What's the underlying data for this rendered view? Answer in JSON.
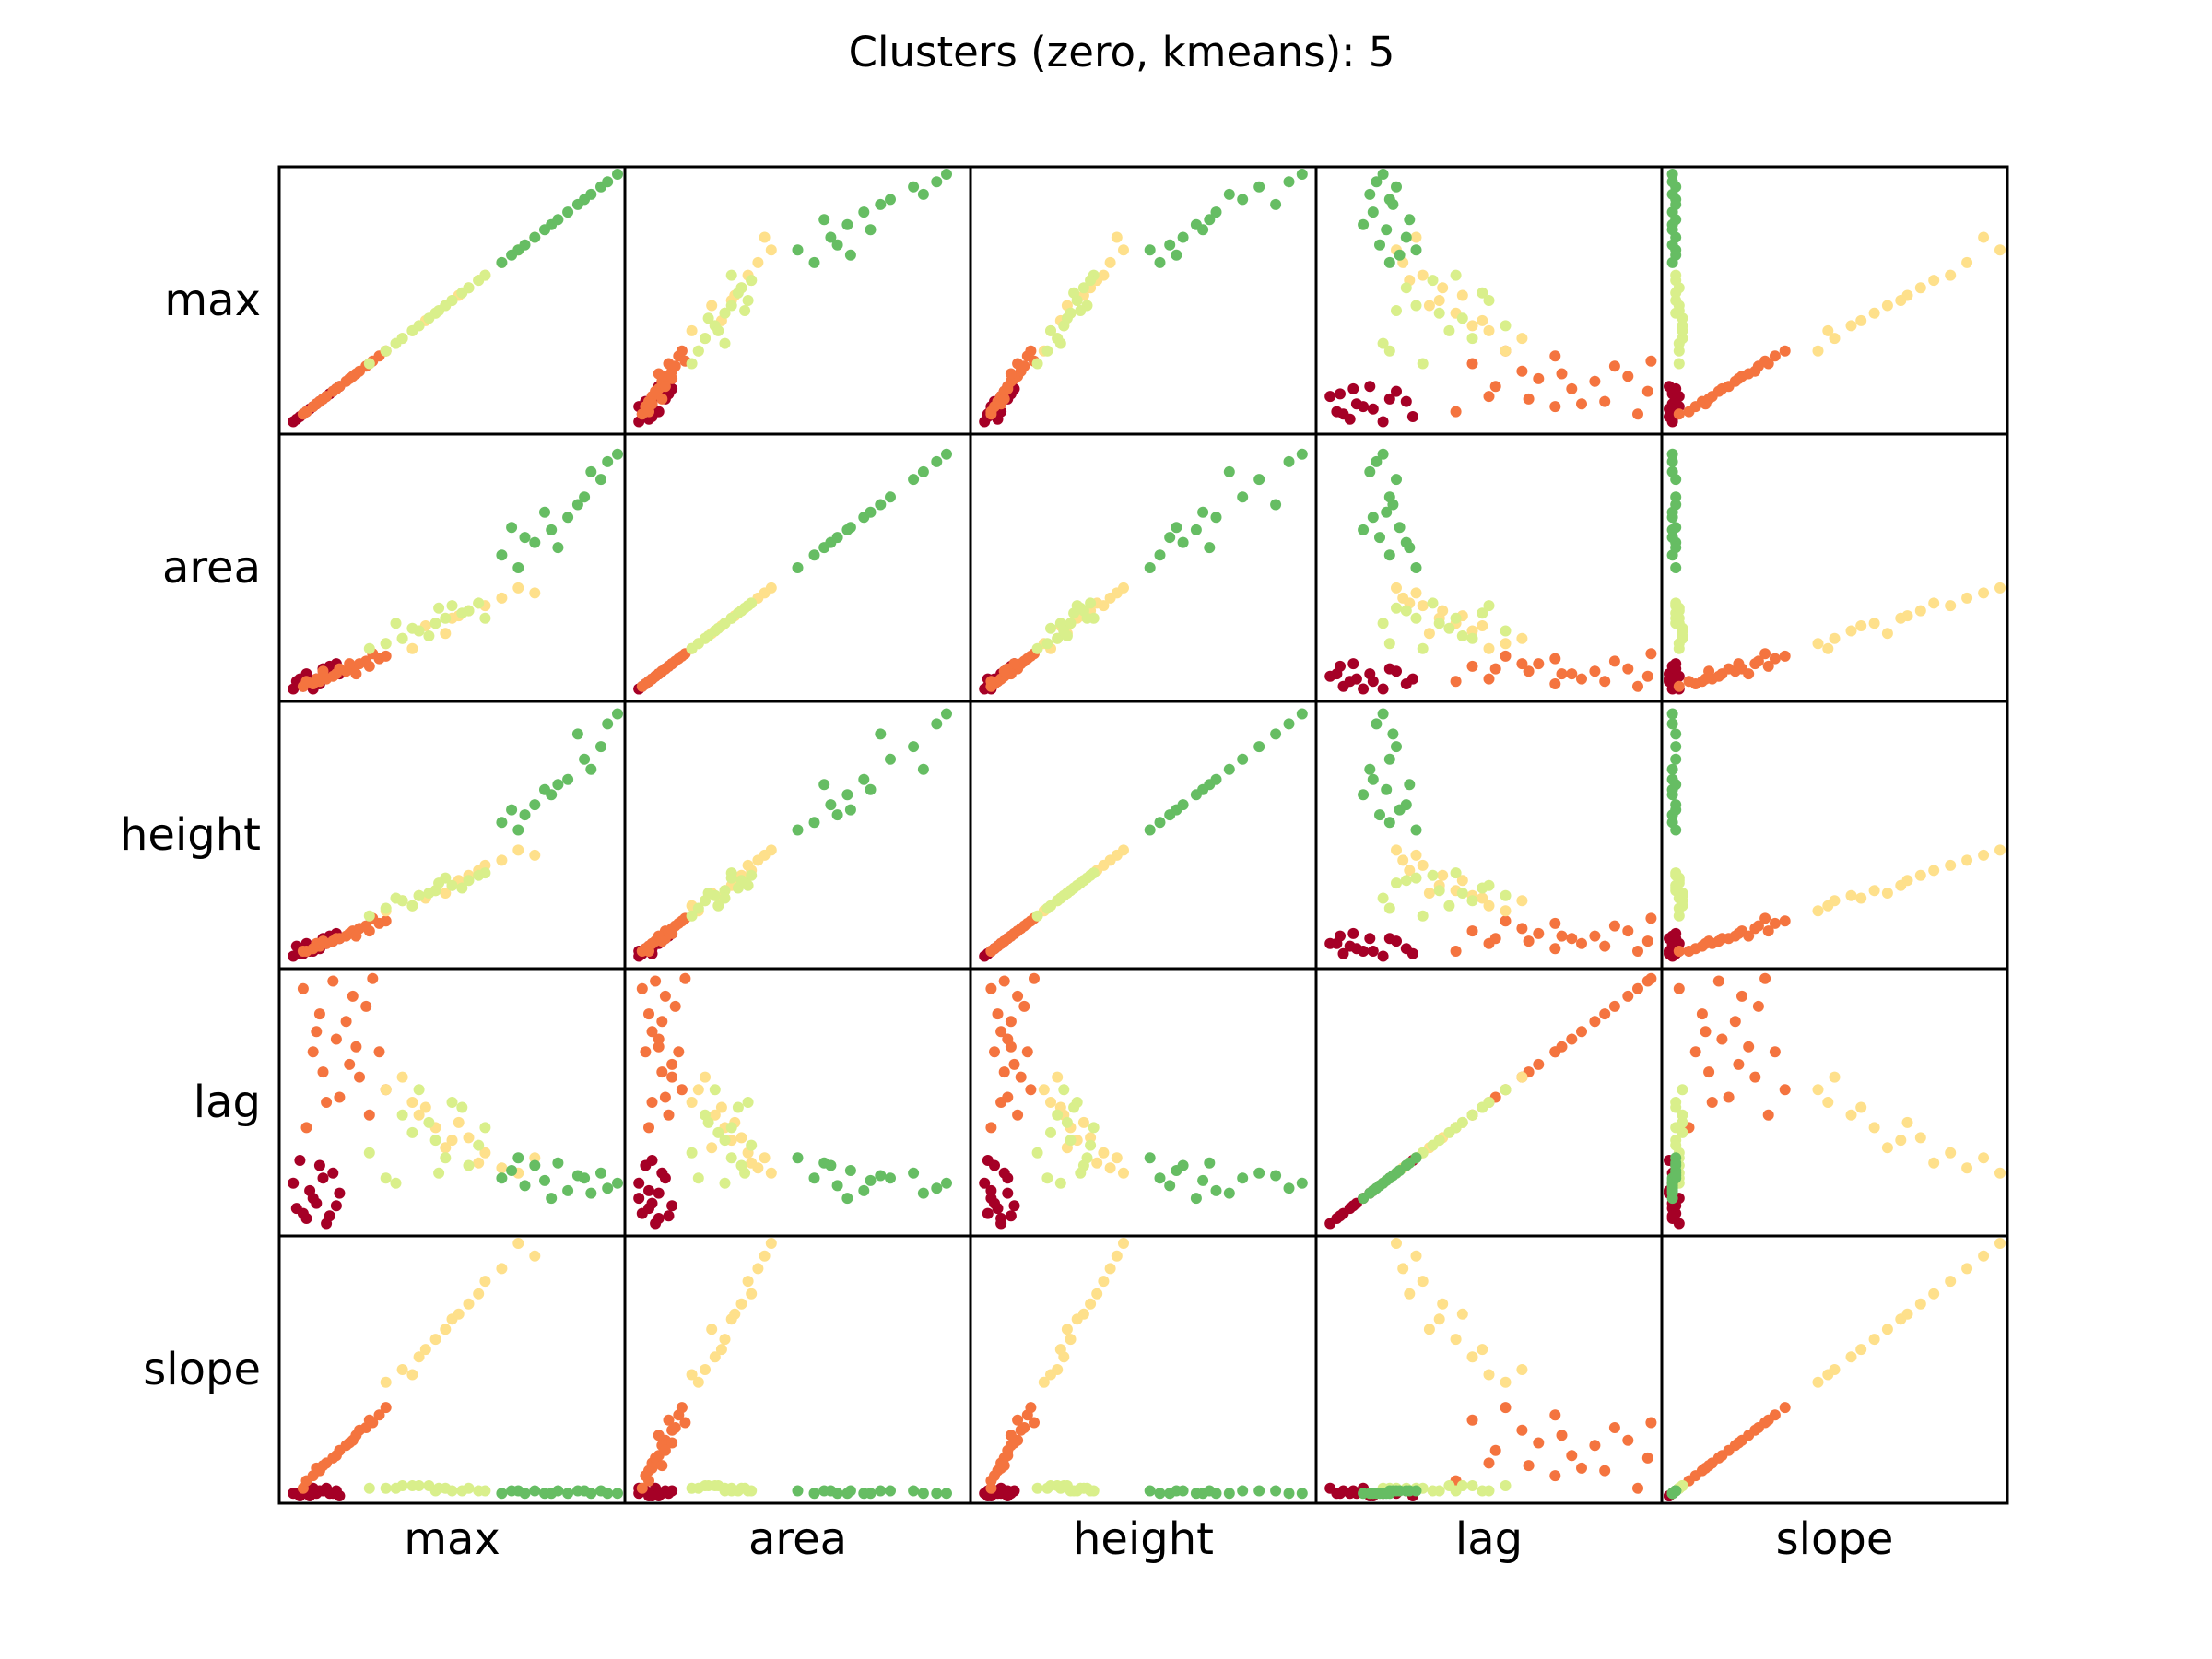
{
  "chart_data": {
    "type": "scatter",
    "title": "Clusters (zero, kmeans): 5",
    "variables": [
      "max",
      "area",
      "height",
      "lag",
      "slope"
    ],
    "row_labels": [
      "max",
      "area",
      "height",
      "lag",
      "slope"
    ],
    "column_labels": [
      "max",
      "area",
      "height",
      "lag",
      "slope"
    ],
    "layout": "scatter-matrix",
    "axes_ticks": "none",
    "grid": false,
    "n_clusters": 5,
    "cluster_colors": [
      "#a50026",
      "#f4743f",
      "#fee08b",
      "#d9ef8b",
      "#66bd63"
    ],
    "clusters": [
      {
        "id": 0,
        "color": "#a50026",
        "points": [
          [
            0.02,
            0.02,
            0.02,
            0.18,
            0.01
          ],
          [
            0.05,
            0.03,
            0.03,
            0.06,
            0.02
          ],
          [
            0.07,
            0.05,
            0.04,
            0.15,
            0.0
          ],
          [
            0.09,
            0.06,
            0.05,
            0.1,
            0.01
          ],
          [
            0.12,
            0.07,
            0.07,
            0.02,
            0.03
          ],
          [
            0.14,
            0.09,
            0.08,
            0.22,
            0.01
          ],
          [
            0.03,
            0.05,
            0.06,
            0.08,
            0.01
          ],
          [
            0.1,
            0.04,
            0.05,
            0.25,
            0.02
          ],
          [
            0.16,
            0.08,
            0.09,
            0.14,
            0.0
          ],
          [
            0.06,
            0.08,
            0.07,
            0.04,
            0.01
          ],
          [
            0.11,
            0.1,
            0.09,
            0.2,
            0.02
          ],
          [
            0.08,
            0.02,
            0.04,
            0.12,
            0.03
          ],
          [
            0.13,
            0.11,
            0.1,
            0.05,
            0.01
          ],
          [
            0.04,
            0.06,
            0.03,
            0.27,
            0.0
          ],
          [
            0.15,
            0.12,
            0.11,
            0.09,
            0.02
          ]
        ]
      },
      {
        "id": 1,
        "color": "#f4743f",
        "points": [
          [
            0.05,
            0.03,
            0.04,
            0.95,
            0.03
          ],
          [
            0.1,
            0.05,
            0.06,
            0.85,
            0.1
          ],
          [
            0.15,
            0.08,
            0.09,
            0.75,
            0.16
          ],
          [
            0.2,
            0.1,
            0.12,
            0.92,
            0.22
          ],
          [
            0.22,
            0.12,
            0.13,
            0.6,
            0.26
          ],
          [
            0.08,
            0.04,
            0.05,
            0.7,
            0.08
          ],
          [
            0.12,
            0.06,
            0.07,
            0.5,
            0.13
          ],
          [
            0.18,
            0.09,
            0.1,
            0.82,
            0.2
          ],
          [
            0.25,
            0.11,
            0.12,
            0.45,
            0.3
          ],
          [
            0.28,
            0.14,
            0.15,
            0.7,
            0.32
          ],
          [
            0.06,
            0.05,
            0.04,
            0.4,
            0.06
          ],
          [
            0.14,
            0.07,
            0.08,
            0.98,
            0.15
          ],
          [
            0.24,
            0.13,
            0.14,
            0.88,
            0.27
          ],
          [
            0.3,
            0.15,
            0.16,
            0.55,
            0.35
          ],
          [
            0.19,
            0.12,
            0.11,
            0.65,
            0.21
          ],
          [
            0.09,
            0.06,
            0.07,
            0.78,
            0.11
          ],
          [
            0.26,
            0.16,
            0.17,
            0.99,
            0.29
          ],
          [
            0.16,
            0.1,
            0.09,
            0.52,
            0.18
          ],
          [
            0.21,
            0.08,
            0.1,
            0.72,
            0.24
          ],
          [
            0.11,
            0.09,
            0.08,
            0.62,
            0.12
          ]
        ]
      },
      {
        "id": 2,
        "color": "#fee08b",
        "points": [
          [
            0.3,
            0.2,
            0.2,
            0.55,
            0.45
          ],
          [
            0.4,
            0.25,
            0.26,
            0.45,
            0.55
          ],
          [
            0.5,
            0.3,
            0.3,
            0.35,
            0.7
          ],
          [
            0.6,
            0.35,
            0.38,
            0.3,
            0.85
          ],
          [
            0.75,
            0.4,
            0.42,
            0.28,
            0.95
          ],
          [
            0.35,
            0.22,
            0.24,
            0.6,
            0.5
          ],
          [
            0.45,
            0.28,
            0.28,
            0.4,
            0.62
          ],
          [
            0.55,
            0.33,
            0.34,
            0.36,
            0.76
          ],
          [
            0.65,
            0.38,
            0.4,
            0.24,
            0.9
          ],
          [
            0.38,
            0.18,
            0.22,
            0.5,
            0.48
          ],
          [
            0.48,
            0.24,
            0.27,
            0.32,
            0.66
          ],
          [
            0.58,
            0.36,
            0.36,
            0.26,
            0.8
          ],
          [
            0.7,
            0.42,
            0.44,
            0.22,
            1.0
          ],
          [
            0.42,
            0.27,
            0.25,
            0.48,
            0.58
          ],
          [
            0.52,
            0.31,
            0.32,
            0.42,
            0.72
          ]
        ]
      },
      {
        "id": 3,
        "color": "#d9ef8b",
        "points": [
          [
            0.25,
            0.18,
            0.18,
            0.3,
            0.03
          ],
          [
            0.35,
            0.22,
            0.24,
            0.45,
            0.04
          ],
          [
            0.45,
            0.28,
            0.28,
            0.35,
            0.02
          ],
          [
            0.55,
            0.33,
            0.32,
            0.25,
            0.03
          ],
          [
            0.6,
            0.3,
            0.35,
            0.4,
            0.02
          ],
          [
            0.4,
            0.25,
            0.26,
            0.55,
            0.04
          ],
          [
            0.3,
            0.2,
            0.21,
            0.2,
            0.03
          ],
          [
            0.5,
            0.35,
            0.3,
            0.5,
            0.02
          ],
          [
            0.38,
            0.26,
            0.22,
            0.38,
            0.04
          ],
          [
            0.48,
            0.3,
            0.33,
            0.28,
            0.03
          ],
          [
            0.58,
            0.36,
            0.34,
            0.33,
            0.02
          ],
          [
            0.43,
            0.23,
            0.27,
            0.42,
            0.04
          ],
          [
            0.33,
            0.28,
            0.25,
            0.18,
            0.03
          ],
          [
            0.53,
            0.32,
            0.29,
            0.48,
            0.02
          ],
          [
            0.46,
            0.34,
            0.31,
            0.22,
            0.03
          ]
        ]
      },
      {
        "id": 4,
        "color": "#66bd63",
        "points": [
          [
            0.65,
            0.55,
            0.55,
            0.2,
            0.01
          ],
          [
            0.75,
            0.6,
            0.62,
            0.25,
            0.02
          ],
          [
            0.85,
            0.7,
            0.72,
            0.15,
            0.01
          ],
          [
            0.95,
            0.85,
            0.85,
            0.22,
            0.02
          ],
          [
            1.0,
            0.95,
            0.98,
            0.18,
            0.01
          ],
          [
            0.7,
            0.5,
            0.52,
            0.28,
            0.02
          ],
          [
            0.8,
            0.65,
            0.66,
            0.12,
            0.01
          ],
          [
            0.9,
            0.78,
            0.8,
            0.2,
            0.02
          ],
          [
            0.72,
            0.62,
            0.58,
            0.17,
            0.01
          ],
          [
            0.82,
            0.58,
            0.7,
            0.26,
            0.02
          ],
          [
            0.92,
            0.88,
            0.76,
            0.14,
            0.01
          ],
          [
            0.68,
            0.66,
            0.6,
            0.23,
            0.02
          ],
          [
            0.78,
            0.72,
            0.68,
            0.19,
            0.01
          ],
          [
            0.88,
            0.75,
            0.9,
            0.21,
            0.02
          ],
          [
            0.97,
            0.92,
            0.94,
            0.16,
            0.01
          ]
        ]
      }
    ]
  }
}
